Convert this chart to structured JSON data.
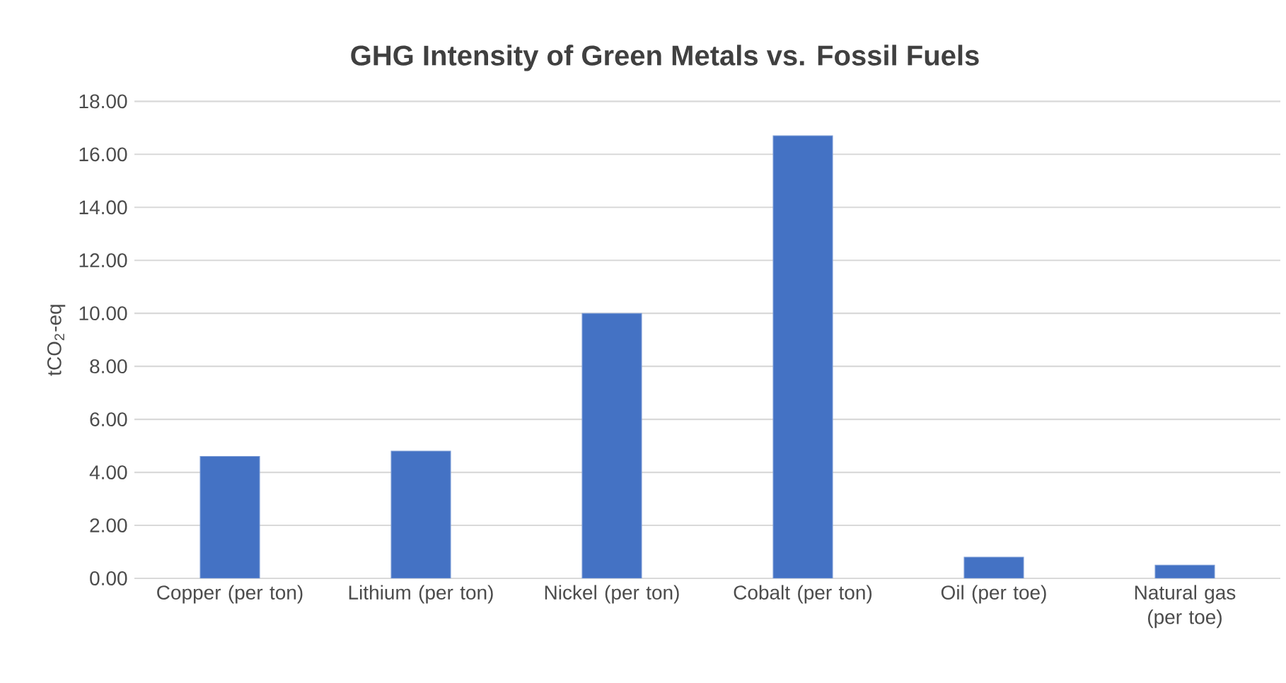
{
  "chart_data": {
    "type": "bar",
    "title": "GHG Intensity of Green Metals vs. Fossil Fuels",
    "ylabel": "tCO$_{2}$-eq",
    "categories": [
      "Copper (per ton)",
      "Lithium (per ton)",
      "Nickel (per ton)",
      "Cobalt (per ton)",
      "Oil (per toe)",
      "Natural gas (per toe)"
    ],
    "values": [
      4.6,
      4.8,
      10.0,
      16.7,
      0.8,
      0.5
    ],
    "color": "#4472c4",
    "ylim": [
      0,
      18
    ],
    "yticks": [
      {
        "value": 0,
        "label": "0.00"
      },
      {
        "value": 2,
        "label": "2.00"
      },
      {
        "value": 4,
        "label": "4.00"
      },
      {
        "value": 6,
        "label": "6.00"
      },
      {
        "value": 8,
        "label": "8.00"
      },
      {
        "value": 10,
        "label": "10.00"
      },
      {
        "value": 12,
        "label": "12.00"
      },
      {
        "value": 14,
        "label": "14.00"
      },
      {
        "value": 16,
        "label": "16.00"
      },
      {
        "value": 18,
        "label": "18.00"
      }
    ],
    "grid": "y"
  }
}
